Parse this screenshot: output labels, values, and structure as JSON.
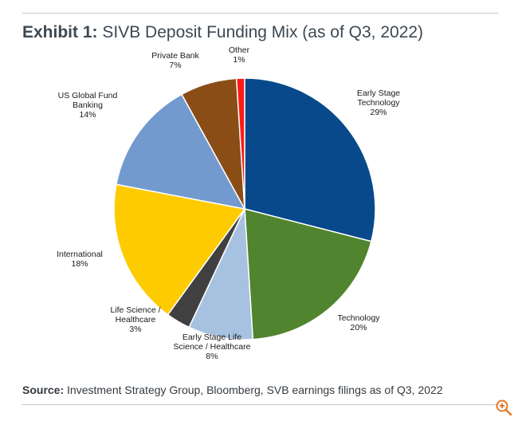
{
  "chart_data": {
    "type": "pie",
    "title_prefix": "Exhibit 1:",
    "title": "SIVB Deposit Funding Mix (as of Q3, 2022)",
    "slices": [
      {
        "label": [
          "Early Stage",
          "Technology"
        ],
        "value_label": "29%",
        "value": 29,
        "color": "#07498a"
      },
      {
        "label": [
          "Technology"
        ],
        "value_label": "20%",
        "value": 20,
        "color": "#50842f"
      },
      {
        "label": [
          "Early Stage Life",
          "Science / Healthcare"
        ],
        "value_label": "8%",
        "value": 8,
        "color": "#a6c2e0"
      },
      {
        "label": [
          "Life Science /",
          "Healthcare"
        ],
        "value_label": "3%",
        "value": 3,
        "color": "#404040"
      },
      {
        "label": [
          "International"
        ],
        "value_label": "18%",
        "value": 18,
        "color": "#fecb00"
      },
      {
        "label": [
          "US Global Fund",
          "Banking"
        ],
        "value_label": "14%",
        "value": 14,
        "color": "#739ace"
      },
      {
        "label": [
          "Private Bank"
        ],
        "value_label": "7%",
        "value": 7,
        "color": "#8a4d16"
      },
      {
        "label": [
          "Other"
        ],
        "value_label": "1%",
        "value": 1,
        "color": "#ff1a1a"
      }
    ]
  },
  "footer": {
    "source_prefix": "Source:",
    "source_text": "Investment Strategy Group, Bloomberg, SVB earnings filings as of Q3, 2022"
  },
  "controls": {
    "zoom_icon": "zoom-in-icon",
    "zoom_color": "#e8792a"
  }
}
